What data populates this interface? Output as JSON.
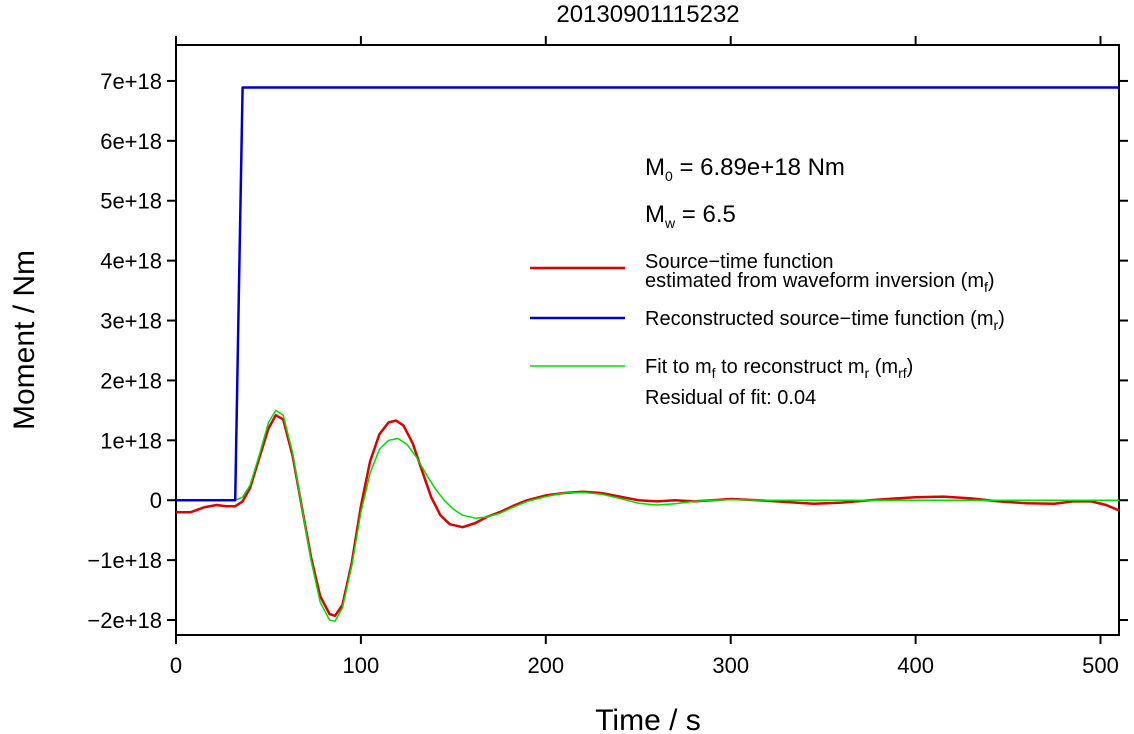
{
  "chart_data": {
    "type": "line",
    "title": "20130901115232",
    "xlabel": "Time / s",
    "ylabel": "Moment / Nm",
    "xlim": [
      0,
      510
    ],
    "ylim": [
      -2.25e+18,
      7.6e+18
    ],
    "grid": false,
    "legend_position": "right",
    "x_ticks": [
      0,
      100,
      200,
      300,
      400,
      500
    ],
    "x_tick_labels": [
      "0",
      "100",
      "200",
      "300",
      "400",
      "500"
    ],
    "y_ticks": [
      -2e+18,
      -1e+18,
      0,
      1e+18,
      2e+18,
      3e+18,
      4e+18,
      5e+18,
      6e+18,
      7e+18
    ],
    "y_tick_labels": [
      "−2e+18",
      "−1e+18",
      "0",
      "1e+18",
      "2e+18",
      "3e+18",
      "4e+18",
      "5e+18",
      "6e+18",
      "7e+18"
    ],
    "annotations": {
      "m0_prefix": "M",
      "m0_sub": "0",
      "m0_value": " = 6.89e+18 Nm",
      "mw_prefix": "M",
      "mw_sub": "w",
      "mw_value": " = 6.5",
      "residual": "Residual of fit: 0.04"
    },
    "legend": [
      {
        "line1": "Source−time function",
        "line2": "estimated from waveform inversion (m",
        "sub": "f",
        "tail": ")",
        "color": "#dd0000"
      },
      {
        "line1": "Reconstructed source−time function (m",
        "sub": "r",
        "tail": ")",
        "color": "#0000cc"
      },
      {
        "line1": "Fit to m",
        "sub1": "f",
        "mid": " to reconstruct m",
        "sub2": "r",
        "mid2": " (m",
        "sub3": "rf",
        "tail": ")",
        "color": "#00dd00"
      }
    ],
    "series": [
      {
        "color": "#dd0000",
        "x": [
          0,
          8,
          15,
          22,
          27,
          32,
          36,
          40,
          45,
          50,
          54,
          58,
          63,
          68,
          73,
          78,
          83,
          86,
          90,
          95,
          100,
          105,
          110,
          115,
          119,
          123,
          128,
          133,
          138,
          143,
          148,
          155,
          162,
          168,
          175,
          182,
          190,
          200,
          210,
          220,
          230,
          240,
          250,
          260,
          270,
          280,
          290,
          300,
          315,
          330,
          345,
          360,
          375,
          390,
          400,
          415,
          430,
          445,
          460,
          475,
          485,
          495,
          503,
          510
        ],
        "y": [
          -2e+17,
          -2e+17,
          -1.2e+17,
          -8e+16,
          -1e+17,
          -1e+17,
          -2e+16,
          2e+17,
          7e+17,
          1.2e+18,
          1.42e+18,
          1.35e+18,
          7.5e+17,
          -1e+17,
          -9.5e+17,
          -1.6e+18,
          -1.9e+18,
          -1.93e+18,
          -1.75e+18,
          -1.05e+18,
          -1e+17,
          6.5e+17,
          1.1e+18,
          1.3e+18,
          1.33e+18,
          1.25e+18,
          9.5e+17,
          5e+17,
          5e+16,
          -2.5e+17,
          -4e+17,
          -4.5e+17,
          -3.8e+17,
          -2.8e+17,
          -2e+17,
          -1e+17,
          0.0,
          8e+16,
          1.2e+17,
          1.4e+17,
          1.2e+17,
          6e+16,
          0.0,
          -2e+16,
          0.0,
          -2e+16,
          0.0,
          2e+16,
          0.0,
          -3e+16,
          -6e+16,
          -4e+16,
          0.0,
          3e+16,
          5e+16,
          6e+16,
          3e+16,
          -2e+16,
          -5e+16,
          -6e+16,
          -2e+16,
          -2e+16,
          -8e+16,
          -1.7e+17
        ]
      },
      {
        "color": "#0000cc",
        "x": [
          0,
          32,
          34,
          36,
          510
        ],
        "y": [
          0,
          0,
          3.5e+18,
          6.89e+18,
          6.89e+18
        ]
      },
      {
        "color": "#00dd00",
        "x": [
          0,
          32,
          36,
          40,
          45,
          50,
          54,
          58,
          63,
          68,
          73,
          78,
          83,
          86,
          90,
          95,
          100,
          105,
          110,
          115,
          120,
          125,
          130,
          135,
          140,
          145,
          150,
          155,
          162,
          168,
          175,
          182,
          190,
          200,
          210,
          220,
          230,
          240,
          250,
          260,
          270,
          280,
          290,
          300,
          320,
          340,
          360,
          380,
          400,
          420,
          440,
          460,
          480,
          500,
          510
        ],
        "y": [
          0,
          0,
          5e+16,
          2.5e+17,
          7.5e+17,
          1.3e+18,
          1.5e+18,
          1.42e+18,
          8e+17,
          -1e+17,
          -1e+18,
          -1.7e+18,
          -2e+18,
          -2.02e+18,
          -1.8e+18,
          -1.1e+18,
          -2e+17,
          4.5e+17,
          8.5e+17,
          1e+18,
          1.03e+18,
          9.3e+17,
          7.2e+17,
          4.5e+17,
          2e+17,
          0.0,
          -1.5e+17,
          -2.5e+17,
          -3e+17,
          -2.8e+17,
          -2.2e+17,
          -1.2e+17,
          -2e+16,
          6e+16,
          1.2e+17,
          1.3e+17,
          1e+17,
          3e+16,
          -5e+16,
          -8e+16,
          -6e+16,
          -2e+16,
          0.0,
          1e+16,
          0.0,
          0.0,
          0.0,
          0.0,
          0.0,
          0.0,
          0.0,
          0.0,
          0.0,
          0.0,
          0.0
        ]
      }
    ]
  }
}
